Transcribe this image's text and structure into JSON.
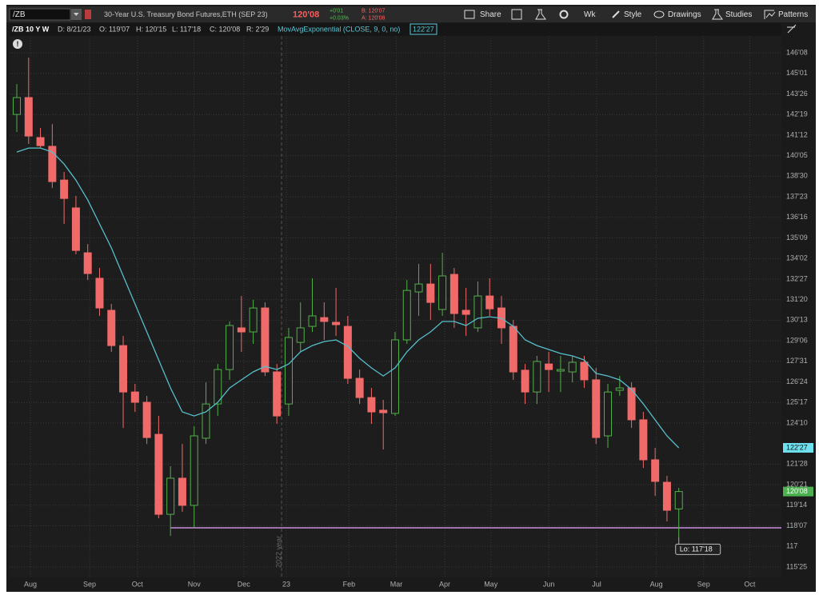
{
  "toolbar": {
    "symbol": "/ZB",
    "description": "30-Year U.S. Treasury Bond Futures,ETH (SEP 23)",
    "last": "120'08",
    "change": "+0'01",
    "change_pct": "+0.03%",
    "bid": "B: 120'07",
    "ask": "A: 120'08",
    "buttons": [
      "Share",
      "Wk",
      "Style",
      "Drawings",
      "Studies",
      "Patterns"
    ]
  },
  "info_bar": {
    "chart": "/ZB 10 Y W",
    "date": "D: 8/21/23",
    "open": "O: 119'07",
    "high": "H: 120'15",
    "low": "L: 117'18",
    "close": "C: 120'08",
    "range": "R: 2'29"
  },
  "chart_data": {
    "type": "candlestick",
    "categories": [
      null,
      null,
      null,
      null,
      null,
      null,
      null,
      null,
      null,
      null,
      null,
      null,
      null,
      null,
      null,
      null,
      null,
      null,
      null,
      null,
      null,
      null,
      null,
      null,
      null,
      null,
      null,
      null,
      null,
      null,
      null,
      null,
      null,
      null,
      null,
      null,
      null,
      null,
      null,
      null,
      null,
      null,
      null,
      null,
      null,
      null,
      null,
      null,
      null,
      null,
      null,
      null,
      null,
      null,
      null,
      null,
      null
    ],
    "open": [
      142.6,
      143.6,
      141.23,
      140.71,
      138.71,
      137.06,
      134.4,
      132.89,
      130.99,
      128.9,
      126.15,
      125.54,
      123.64,
      118.9,
      121.04,
      119.43,
      123.41,
      125.44,
      127.48,
      129.95,
      129.71,
      131.13,
      127.34,
      125.44,
      129.09,
      130.04,
      130.56,
      130.28,
      130.04,
      126.96,
      125.82,
      125.07,
      124.88,
      129.24,
      132.08,
      132.55,
      131.04,
      133.12,
      130.99,
      129.95,
      131.84,
      131.13,
      130.04,
      127.44,
      126.15,
      127.81,
      127.39,
      127.34,
      127.91,
      126.87,
      123.55,
      126.25,
      126.39,
      124.5,
      122.13,
      120.8,
      119.21875
    ],
    "high": [
      144.4,
      145.97,
      141.8,
      142.03,
      139.19,
      137.77,
      134.92,
      133.5,
      131.37,
      129.47,
      126.63,
      125.92,
      124.73,
      121.75,
      123.07,
      124.12,
      126.72,
      127.81,
      130.33,
      131.84,
      131.61,
      131.46,
      127.81,
      129.95,
      131.46,
      132.89,
      131.46,
      132.32,
      130.66,
      127.48,
      126.39,
      125.68,
      129.71,
      132.79,
      133.74,
      133.74,
      134.4,
      133.5,
      132.32,
      132.7,
      132.89,
      131.84,
      130.42,
      127.81,
      128.29,
      128.53,
      128.29,
      128.29,
      128.29,
      127.58,
      126.63,
      127.1,
      126.72,
      124.97,
      122.84,
      121.18,
      120.46875
    ],
    "low": [
      141.56,
      140.85,
      140.61,
      138.24,
      136.11,
      134.31,
      132.79,
      130.66,
      128.53,
      124.02,
      124.97,
      123.07,
      118.67,
      117.62,
      119.05,
      118.1,
      123.07,
      124.73,
      126.87,
      128.53,
      129.0,
      127.1,
      124.26,
      124.73,
      128.53,
      129.71,
      129.24,
      129.47,
      126.63,
      125.44,
      124.26,
      122.74,
      124.73,
      129.0,
      130.66,
      130.42,
      130.66,
      129.95,
      129.47,
      129.71,
      130.66,
      129.0,
      126.87,
      125.44,
      125.44,
      126.15,
      126.15,
      126.72,
      126.39,
      123.07,
      122.84,
      125.92,
      124.02,
      121.65,
      119.99,
      118.48,
      117.5625
    ],
    "close": [
      143.6,
      141.32,
      140.75,
      138.62,
      137.62,
      134.54,
      133.17,
      131.13,
      128.9,
      126.15,
      125.54,
      123.45,
      118.9,
      121.04,
      119.43,
      123.55,
      125.44,
      127.48,
      130.09,
      129.71,
      131.13,
      127.34,
      124.73,
      129.38,
      129.95,
      130.66,
      130.33,
      130.14,
      126.96,
      125.82,
      124.97,
      124.92,
      129.24,
      132.17,
      132.55,
      131.46,
      133.03,
      130.8,
      130.75,
      131.84,
      131.08,
      129.95,
      127.34,
      126.15,
      127.96,
      127.48,
      127.48,
      127.91,
      126.87,
      123.45,
      126.15,
      126.39,
      124.5,
      122.13,
      120.85,
      119.14,
      120.25
    ],
    "up_color": "#52b04a",
    "down_color": "#f06a6a",
    "series": [
      {
        "name": "MovAvgExponential (CLOSE, 9, 0, no)",
        "color": "#56bfcc",
        "values": [
          140.37,
          140.61,
          140.61,
          140.37,
          139.66,
          138.71,
          137.53,
          136.11,
          134.69,
          133.03,
          131.37,
          129.71,
          128.05,
          126.39,
          124.97,
          124.73,
          124.97,
          125.54,
          126.39,
          126.87,
          127.34,
          127.67,
          127.48,
          127.81,
          128.53,
          128.9,
          129.14,
          129.24,
          128.86,
          128.15,
          127.58,
          127.1,
          127.58,
          128.53,
          129.24,
          129.71,
          130.33,
          130.33,
          130.09,
          130.52,
          130.61,
          130.52,
          130.04,
          129.24,
          128.9,
          128.67,
          128.43,
          128.29,
          128.05,
          127.25,
          127.1,
          126.87,
          126.3,
          125.44,
          124.5,
          123.55,
          122.84
        ]
      }
    ],
    "ema_label": "122'27",
    "last_label": "120'08",
    "low_label": "Lo: 117'18",
    "hline": {
      "value": 118.1,
      "from": 13,
      "color": "#c98de0"
    },
    "year_marker": {
      "value": 22.4,
      "label": "2022 year"
    },
    "xlim": [
      -0.61,
      64.68
    ],
    "xticks": [
      {
        "value": 1.15,
        "label": "Aug"
      },
      {
        "value": 6.16,
        "label": "Sep"
      },
      {
        "value": 10.2,
        "label": "Oct"
      },
      {
        "value": 15.0,
        "label": "Nov"
      },
      {
        "value": 19.2,
        "label": "Dec"
      },
      {
        "value": 22.8,
        "label": "23"
      },
      {
        "value": 28.1,
        "label": "Feb"
      },
      {
        "value": 32.1,
        "label": "Mar"
      },
      {
        "value": 36.2,
        "label": "Apr"
      },
      {
        "value": 40.1,
        "label": "May"
      },
      {
        "value": 45.0,
        "label": "Jun"
      },
      {
        "value": 49.05,
        "label": "Jul"
      },
      {
        "value": 54.1,
        "label": "Aug"
      },
      {
        "value": 58.1,
        "label": "Sep"
      },
      {
        "value": 62.0,
        "label": "Oct"
      }
    ],
    "ylim": [
      115.16,
      147.25
    ],
    "yticks": [
      {
        "value": 146.25,
        "label": "146'08"
      },
      {
        "value": 145.03125,
        "label": "145'01"
      },
      {
        "value": 143.8125,
        "label": "143'26"
      },
      {
        "value": 142.59375,
        "label": "142'19"
      },
      {
        "value": 141.375,
        "label": "141'12"
      },
      {
        "value": 140.15625,
        "label": "140'05"
      },
      {
        "value": 138.9375,
        "label": "138'30"
      },
      {
        "value": 137.71875,
        "label": "137'23"
      },
      {
        "value": 136.5,
        "label": "136'16"
      },
      {
        "value": 135.28125,
        "label": "135'09"
      },
      {
        "value": 134.0625,
        "label": "134'02"
      },
      {
        "value": 132.84375,
        "label": "132'27"
      },
      {
        "value": 131.625,
        "label": "131'20"
      },
      {
        "value": 130.40625,
        "label": "130'13"
      },
      {
        "value": 129.1875,
        "label": "129'06"
      },
      {
        "value": 127.96875,
        "label": "127'31"
      },
      {
        "value": 126.75,
        "label": "126'24"
      },
      {
        "value": 125.53125,
        "label": "125'17"
      },
      {
        "value": 124.3125,
        "label": "124'10"
      },
      {
        "value": 121.875,
        "label": "121'28"
      },
      {
        "value": 120.65625,
        "label": "120'21"
      },
      {
        "value": 119.4375,
        "label": "119'14"
      },
      {
        "value": 118.21875,
        "label": "118'07"
      },
      117,
      {
        "value": 115.78125,
        "label": "115'25"
      }
    ],
    "grid": true
  }
}
